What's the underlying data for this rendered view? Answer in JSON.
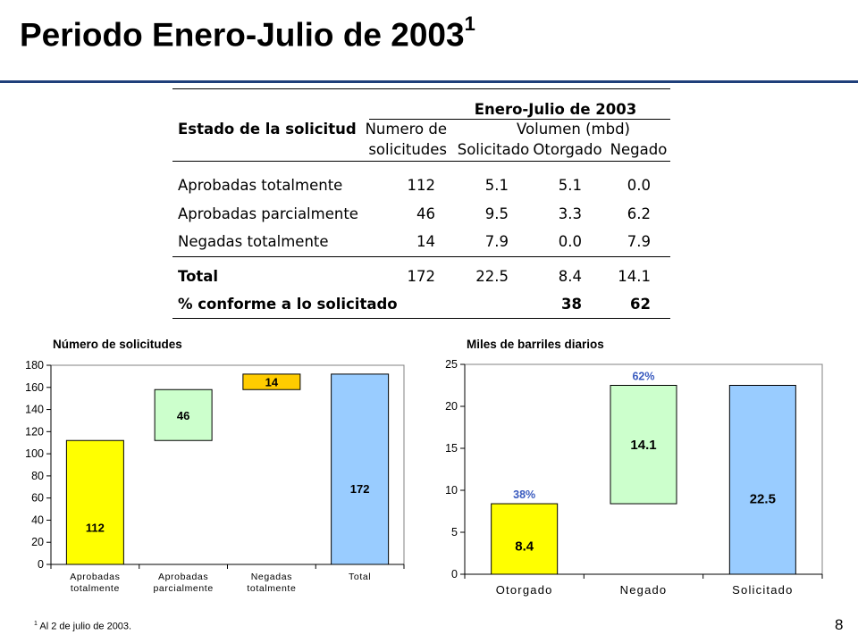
{
  "header": {
    "title": "Periodo Enero-Julio de 2003",
    "title_sup": "1"
  },
  "table": {
    "group_header": "Enero-Julio de 2003",
    "col_estado": "Estado de la solicitud",
    "col_numero_line1": "Numero de",
    "col_numero_line2": "solicitudes",
    "col_volumen": "Volumen (mbd)",
    "col_solicitado": "Solicitado",
    "col_otorgado": "Otorgado",
    "col_negado": "Negado",
    "rows": [
      {
        "label": "Aprobadas totalmente",
        "numero": "112",
        "solicitado": "5.1",
        "otorgado": "5.1",
        "negado": "0.0"
      },
      {
        "label": "Aprobadas parcialmente",
        "numero": "46",
        "solicitado": "9.5",
        "otorgado": "3.3",
        "negado": "6.2"
      },
      {
        "label": "Negadas totalmente",
        "numero": "14",
        "solicitado": "7.9",
        "otorgado": "0.0",
        "negado": "7.9"
      }
    ],
    "total": {
      "label": "Total",
      "numero": "172",
      "solicitado": "22.5",
      "otorgado": "8.4",
      "negado": "14.1"
    },
    "percent_row": {
      "label": "% conforme a lo solicitado",
      "otorgado": "38",
      "negado": "62"
    }
  },
  "chart_data": [
    {
      "type": "bar",
      "subtype": "waterfall",
      "title": "Número de solicitudes",
      "categories": [
        "Aprobadas totalmente",
        "Aprobadas parcialmente",
        "Negadas totalmente",
        "Total"
      ],
      "category_label_lines": [
        [
          "Aprobadas",
          "totalmente"
        ],
        [
          "Aprobadas",
          "parcialmente"
        ],
        [
          "Negadas",
          "totalmente"
        ],
        [
          "Total"
        ]
      ],
      "bars": [
        {
          "base": 0,
          "value": 112,
          "label": "112",
          "color": "#ffff00"
        },
        {
          "base": 112,
          "value": 46,
          "label": "46",
          "color": "#ccffcc"
        },
        {
          "base": 158,
          "value": 14,
          "label": "14",
          "color": "#ffcc00"
        },
        {
          "base": 0,
          "value": 172,
          "label": "172",
          "color": "#99ccff"
        }
      ],
      "ylim": [
        0,
        180
      ],
      "yticks": [
        0,
        20,
        40,
        60,
        80,
        100,
        120,
        140,
        160,
        180
      ],
      "grid": false
    },
    {
      "type": "bar",
      "subtype": "waterfall",
      "title": "Miles de barriles diarios",
      "categories": [
        "Otorgado",
        "Negado",
        "Solicitado"
      ],
      "category_label_lines": [
        [
          "Otorgado"
        ],
        [
          "Negado"
        ],
        [
          "Solicitado"
        ]
      ],
      "bars": [
        {
          "base": 0,
          "value": 8.4,
          "label": "8.4",
          "color": "#ffff00",
          "annotation": "38%"
        },
        {
          "base": 8.4,
          "value": 14.1,
          "label": "14.1",
          "color": "#ccffcc",
          "annotation": "62%"
        },
        {
          "base": 0,
          "value": 22.5,
          "label": "22.5",
          "color": "#99ccff"
        }
      ],
      "annotation_color": "#3a5bbf",
      "ylim": [
        0,
        25
      ],
      "yticks": [
        0,
        5,
        10,
        15,
        20,
        25
      ],
      "grid": false
    }
  ],
  "footnote": {
    "sup": "1",
    "text": "Al 2 de julio de 2003."
  },
  "page_number": "8"
}
